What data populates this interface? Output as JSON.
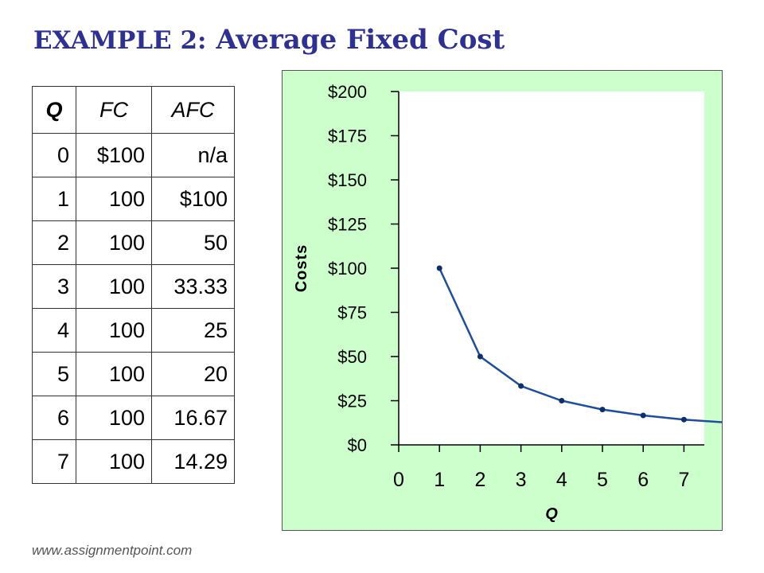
{
  "title": {
    "prefix": "EXAMPLE 2:",
    "main": "Average Fixed Cost"
  },
  "table": {
    "headers": [
      "Q",
      "FC",
      "AFC"
    ],
    "rows": [
      [
        "0",
        "$100",
        "n/a"
      ],
      [
        "1",
        "100",
        "$100"
      ],
      [
        "2",
        "100",
        "50"
      ],
      [
        "3",
        "100",
        "33.33"
      ],
      [
        "4",
        "100",
        "25"
      ],
      [
        "5",
        "100",
        "20"
      ],
      [
        "6",
        "100",
        "16.67"
      ],
      [
        "7",
        "100",
        "14.29"
      ]
    ]
  },
  "chart_data": {
    "type": "line",
    "xlabel": "Q",
    "ylabel": "Costs",
    "x": [
      1,
      2,
      3,
      4,
      5,
      6,
      7
    ],
    "series": [
      {
        "values": [
          100,
          50,
          33.33,
          25,
          20,
          16.67,
          14.29
        ]
      }
    ],
    "xlim": [
      0,
      7.5
    ],
    "ylim": [
      0,
      200
    ],
    "xticks": [
      "0",
      "1",
      "2",
      "3",
      "4",
      "5",
      "6",
      "7"
    ],
    "yticks": [
      "$0",
      "$25",
      "$50",
      "$75",
      "$100",
      "$125",
      "$150",
      "$175",
      "$200"
    ],
    "grid": false,
    "colors": {
      "line": "#1f4e9c",
      "plot_bg": "#ffffff",
      "chart_bg": "#ccffcc"
    }
  },
  "footer": "www.assignmentpoint.com"
}
